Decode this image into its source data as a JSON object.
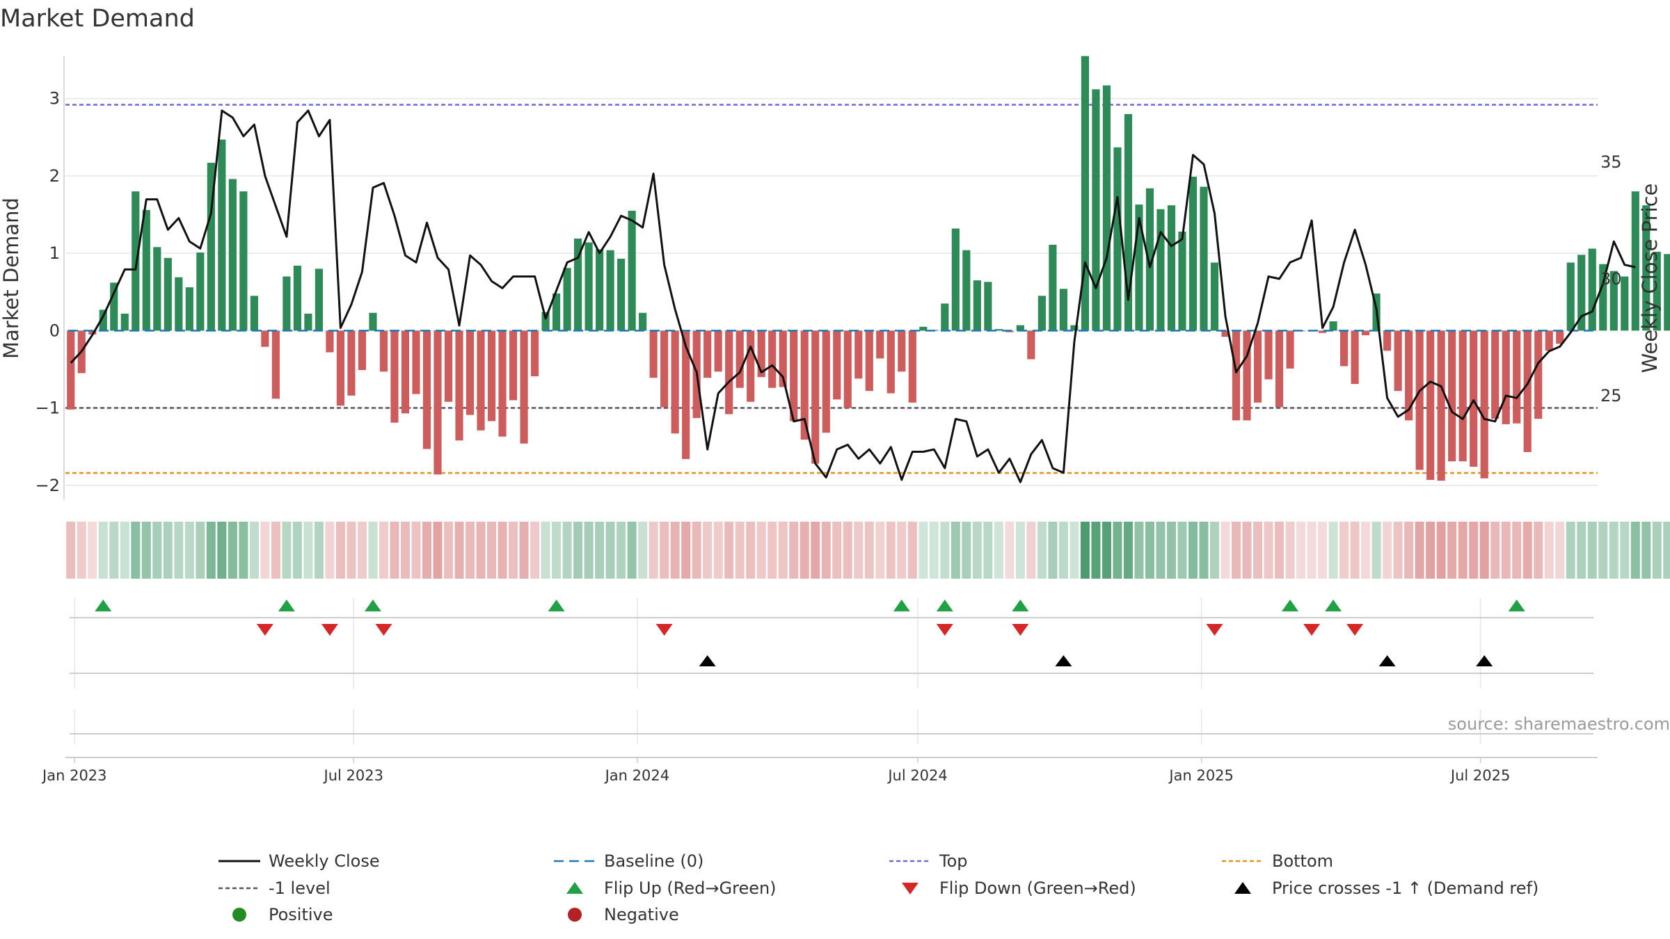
{
  "chart_data": {
    "type": "bar+line",
    "title": "Market Demand",
    "ylabel_left": "Market Demand",
    "ylabel_right": "Weekly Close Price",
    "ylim_left": [
      -2.2,
      3.6
    ],
    "ylim_right": [
      20.5,
      39.7
    ],
    "yticks_left": [
      3,
      2,
      1,
      0,
      -1,
      -2
    ],
    "ytick_labels_left": [
      "3",
      "2",
      "1",
      "0",
      "−1",
      "−2"
    ],
    "yticks_right": [
      35,
      30,
      25
    ],
    "ytick_labels_right": [
      "35",
      "30",
      "25"
    ],
    "x_start": "2022-12-26",
    "x_end": "2025-09-15",
    "x_ticks": [
      {
        "date": "2023-01-01",
        "label": "Jan 2023"
      },
      {
        "date": "2023-07-01",
        "label": "Jul 2023"
      },
      {
        "date": "2024-01-01",
        "label": "Jan 2024"
      },
      {
        "date": "2024-07-01",
        "label": "Jul 2024"
      },
      {
        "date": "2025-01-01",
        "label": "Jan 2025"
      },
      {
        "date": "2025-07-01",
        "label": "Jul 2025"
      }
    ],
    "reference_lines": {
      "top": 2.92,
      "minus1": -1.0,
      "bottom": -1.84,
      "baseline": 0
    },
    "demand": [
      -1.02,
      -0.55,
      -0.05,
      0.27,
      0.62,
      0.22,
      1.8,
      1.56,
      1.08,
      0.94,
      0.69,
      0.56,
      1.01,
      2.17,
      2.47,
      1.96,
      1.8,
      0.45,
      -0.21,
      -0.88,
      0.7,
      0.84,
      0.22,
      0.8,
      -0.28,
      -0.97,
      -0.84,
      -0.51,
      0.23,
      -0.53,
      -1.19,
      -1.07,
      -0.82,
      -1.53,
      -1.86,
      -0.92,
      -1.42,
      -1.09,
      -1.29,
      -1.17,
      -1.37,
      -0.9,
      -1.46,
      -0.59,
      0.24,
      0.48,
      0.81,
      1.19,
      1.14,
      1.05,
      1.04,
      0.93,
      1.55,
      0.23,
      -0.61,
      -0.99,
      -1.33,
      -1.66,
      -1.13,
      -0.61,
      -0.53,
      -1.08,
      -0.74,
      -0.92,
      -0.6,
      -0.74,
      -0.73,
      -1.17,
      -1.41,
      -1.72,
      -1.32,
      -0.89,
      -1.0,
      -0.62,
      -0.78,
      -0.36,
      -0.81,
      -0.53,
      -0.93,
      0.05,
      0.01,
      0.35,
      1.32,
      1.04,
      0.65,
      0.63,
      0.02,
      -0.02,
      0.07,
      -0.37,
      0.45,
      1.11,
      0.54,
      0.07,
      3.55,
      3.12,
      3.17,
      2.37,
      2.8,
      1.63,
      1.84,
      1.57,
      1.62,
      1.28,
      1.99,
      1.86,
      0.88,
      -0.08,
      -1.16,
      -1.16,
      -0.93,
      -0.63,
      -0.99,
      -0.49,
      -0.01,
      -0.01,
      -0.03,
      0.12,
      -0.46,
      -0.69,
      -0.06,
      0.48,
      -0.26,
      -0.78,
      -1.16,
      -1.8,
      -1.93,
      -1.94,
      -1.69,
      -1.69,
      -1.76,
      -1.91,
      -1.14,
      -1.21,
      -1.2,
      -1.57,
      -1.14,
      -0.26,
      -0.17,
      0.88,
      0.98,
      1.06,
      0.86,
      0.77,
      0.7,
      1.8,
      1.62,
      1.02,
      0.99
    ],
    "weekly_close": [
      26.4,
      26.9,
      27.6,
      28.4,
      29.4,
      30.4,
      30.4,
      33.4,
      33.4,
      32.1,
      32.6,
      31.6,
      31.3,
      32.8,
      37.2,
      36.9,
      36.1,
      36.6,
      34.4,
      33.1,
      31.8,
      36.7,
      37.2,
      36.1,
      36.8,
      27.9,
      28.9,
      30.3,
      33.9,
      34.1,
      32.7,
      31.0,
      30.7,
      32.4,
      30.9,
      30.4,
      28.0,
      31.0,
      30.6,
      29.9,
      29.6,
      30.1,
      30.1,
      30.1,
      28.3,
      29.5,
      30.7,
      30.9,
      32.0,
      31.1,
      31.8,
      32.7,
      32.5,
      32.2,
      34.5,
      30.6,
      28.7,
      27.1,
      26.0,
      22.7,
      25.1,
      25.6,
      26.0,
      27.1,
      26.0,
      26.3,
      25.8,
      23.9,
      24.0,
      22.1,
      21.5,
      22.7,
      22.9,
      22.3,
      22.7,
      22.1,
      22.8,
      21.4,
      22.6,
      22.6,
      22.7,
      21.9,
      24.0,
      23.9,
      22.4,
      22.7,
      21.7,
      22.3,
      21.3,
      22.5,
      23.1,
      21.9,
      21.7,
      27.3,
      30.7,
      29.6,
      30.9,
      33.5,
      29.1,
      32.6,
      30.5,
      32.0,
      31.4,
      31.7,
      35.3,
      34.9,
      32.8,
      28.4,
      26.0,
      26.7,
      28.1,
      30.1,
      30.0,
      30.7,
      30.9,
      32.5,
      27.9,
      28.8,
      30.7,
      32.1,
      30.6,
      28.7,
      24.9,
      24.1,
      24.4,
      25.2,
      25.6,
      25.4,
      24.3,
      24.0,
      24.8,
      24.0,
      23.9,
      25.0,
      24.9,
      25.5,
      26.4,
      26.9,
      27.1,
      27.7,
      28.4,
      28.6,
      29.8,
      31.6,
      30.6,
      30.5
    ],
    "flip_up_weeks": [
      3,
      20,
      28,
      45,
      77,
      81,
      88,
      113,
      117,
      134
    ],
    "flip_down_weeks": [
      18,
      24,
      29,
      55,
      81,
      88,
      106,
      115,
      119
    ],
    "price_cross_weeks": [
      59,
      92,
      122,
      131
    ],
    "source": "source: sharemaestro.com",
    "legend": [
      {
        "label": "Weekly Close",
        "marker": "line"
      },
      {
        "label": "Baseline (0)",
        "marker": "dashed"
      },
      {
        "label": "Top",
        "marker": "dotted"
      },
      {
        "label": "Bottom",
        "marker": "dotted"
      },
      {
        "label": "-1 level",
        "marker": "dotted"
      },
      {
        "label": "Flip Up (Red→Green)",
        "marker": "triangle-up"
      },
      {
        "label": "Flip Down (Green→Red)",
        "marker": "triangle-down"
      },
      {
        "label": "Price crosses -1 ↑ (Demand ref)",
        "marker": "triangle-up"
      },
      {
        "label": "Positive",
        "marker": "circle"
      },
      {
        "label": "Negative",
        "marker": "circle"
      }
    ]
  },
  "colors": {
    "positive": "#2e8b57",
    "negative": "#cd5c5c",
    "close": "#111111",
    "baseline": "#1f77b4",
    "top": "#6a6ad8",
    "bottom": "#e0931e",
    "minus1": "#555566",
    "flip_up": "#22a045",
    "flip_down": "#d62728",
    "cross": "#000000",
    "leg_positive": "#228b22",
    "leg_negative": "#b22222",
    "grid": "#e6e6e6",
    "axis": "#cccccc"
  }
}
